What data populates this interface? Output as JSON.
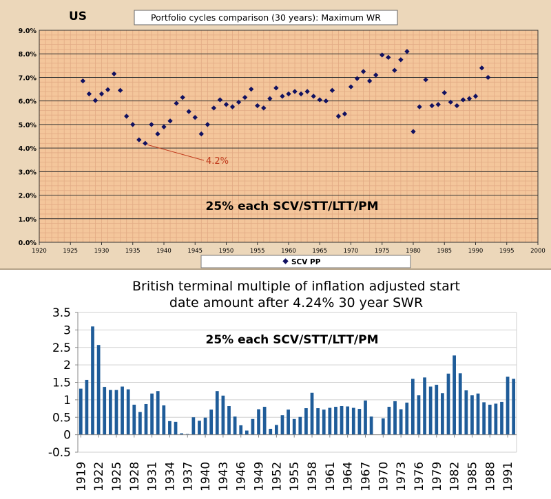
{
  "chart_data": [
    {
      "type": "scatter",
      "corner_label": "US",
      "title": "Portfolio cycles comparison (30 years): Maximum WR",
      "inner_label": "25% each SCV/STT/LTT/PM",
      "annotation": {
        "text": "4.2%",
        "x": 1937,
        "y": 4.2
      },
      "legend": [
        "SCV PP"
      ],
      "legend_position": "bottom",
      "grid": true,
      "xlim": [
        1920,
        2000
      ],
      "ylim": [
        0,
        9
      ],
      "x_ticks": [
        "1920",
        "1925",
        "1930",
        "1935",
        "1940",
        "1945",
        "1950",
        "1955",
        "1960",
        "1965",
        "1970",
        "1975",
        "1980",
        "1985",
        "1990",
        "1995",
        "2000"
      ],
      "y_ticks": [
        "0.0%",
        "1.0%",
        "2.0%",
        "3.0%",
        "4.0%",
        "5.0%",
        "6.0%",
        "7.0%",
        "8.0%",
        "9.0%"
      ],
      "series": [
        {
          "name": "SCV PP",
          "color": "#101060",
          "x": [
            1927,
            1928,
            1929,
            1930,
            1931,
            1932,
            1933,
            1934,
            1935,
            1936,
            1937,
            1938,
            1939,
            1940,
            1941,
            1942,
            1943,
            1944,
            1945,
            1946,
            1947,
            1948,
            1949,
            1950,
            1951,
            1952,
            1953,
            1954,
            1955,
            1956,
            1957,
            1958,
            1959,
            1960,
            1961,
            1962,
            1963,
            1964,
            1965,
            1966,
            1967,
            1968,
            1969,
            1970,
            1971,
            1972,
            1973,
            1974,
            1975,
            1976,
            1977,
            1978,
            1979,
            1980,
            1981,
            1982,
            1983,
            1984,
            1985,
            1986,
            1987,
            1988,
            1989,
            1990,
            1991,
            1992
          ],
          "y": [
            6.85,
            6.3,
            6.02,
            6.3,
            6.48,
            7.15,
            6.45,
            5.35,
            5.0,
            4.35,
            4.2,
            5.0,
            4.6,
            4.9,
            5.15,
            5.9,
            6.15,
            5.55,
            5.3,
            4.6,
            5.0,
            5.7,
            6.05,
            5.85,
            5.75,
            5.95,
            6.15,
            6.5,
            5.8,
            5.7,
            6.1,
            6.55,
            6.2,
            6.3,
            6.4,
            6.3,
            6.4,
            6.2,
            6.05,
            6.0,
            6.45,
            5.35,
            5.45,
            6.6,
            6.95,
            7.25,
            6.85,
            7.1,
            7.95,
            7.85,
            7.3,
            7.75,
            8.1,
            4.7,
            5.75,
            6.9,
            5.8,
            5.85,
            6.35,
            5.95,
            5.8,
            6.05,
            6.1,
            6.2,
            7.4,
            7.0
          ]
        }
      ]
    },
    {
      "type": "bar",
      "title": "British terminal multiple of inflation adjusted start date amount after 4.24% 30 year SWR",
      "inner_label": "25% each SCV/STT/LTT/PM",
      "grid": true,
      "ylim": [
        -0.5,
        3.5
      ],
      "y_ticks": [
        "3.5",
        "3",
        "2.5",
        "2",
        "1.5",
        "1",
        "0.5",
        "0",
        "-0.5"
      ],
      "x_ticks": [
        "1919",
        "1922",
        "1925",
        "1928",
        "1931",
        "1934",
        "1937",
        "1940",
        "1943",
        "1946",
        "1949",
        "1952",
        "1955",
        "1958",
        "1961",
        "1964",
        "1967",
        "1970",
        "1973",
        "1976",
        "1979",
        "1982",
        "1985",
        "1988",
        "1991"
      ],
      "categories": [
        "1919",
        "1920",
        "1921",
        "1922",
        "1923",
        "1924",
        "1925",
        "1926",
        "1927",
        "1928",
        "1929",
        "1930",
        "1931",
        "1932",
        "1933",
        "1934",
        "1935",
        "1936",
        "1937",
        "1938",
        "1939",
        "1940",
        "1941",
        "1942",
        "1943",
        "1944",
        "1945",
        "1946",
        "1947",
        "1948",
        "1949",
        "1950",
        "1951",
        "1952",
        "1953",
        "1954",
        "1955",
        "1956",
        "1957",
        "1958",
        "1959",
        "1960",
        "1961",
        "1962",
        "1963",
        "1964",
        "1965",
        "1966",
        "1967",
        "1968",
        "1969",
        "1970",
        "1971",
        "1972",
        "1973",
        "1974",
        "1975",
        "1976",
        "1977",
        "1978",
        "1979",
        "1980",
        "1981",
        "1982",
        "1983",
        "1984",
        "1985",
        "1986",
        "1987",
        "1988",
        "1989",
        "1990",
        "1991",
        "1992"
      ],
      "values": [
        1.32,
        1.57,
        3.1,
        2.57,
        1.37,
        1.28,
        1.28,
        1.38,
        1.3,
        0.86,
        0.65,
        0.88,
        1.18,
        1.25,
        0.84,
        0.39,
        0.37,
        0.04,
        0.02,
        0.5,
        0.4,
        0.49,
        0.72,
        1.25,
        1.12,
        0.82,
        0.52,
        0.27,
        0.12,
        0.45,
        0.73,
        0.8,
        0.17,
        0.28,
        0.56,
        0.72,
        0.45,
        0.51,
        0.76,
        1.2,
        0.76,
        0.72,
        0.77,
        0.8,
        0.82,
        0.81,
        0.77,
        0.74,
        0.98,
        0.52,
        0.0,
        0.47,
        0.8,
        0.96,
        0.73,
        0.92,
        1.6,
        1.13,
        1.64,
        1.38,
        1.43,
        1.19,
        1.75,
        2.27,
        1.76,
        1.27,
        1.13,
        1.18,
        0.93,
        0.86,
        0.89,
        0.94,
        1.66,
        1.6
      ],
      "series": [
        {
          "color": "#1f5c99"
        }
      ]
    }
  ]
}
